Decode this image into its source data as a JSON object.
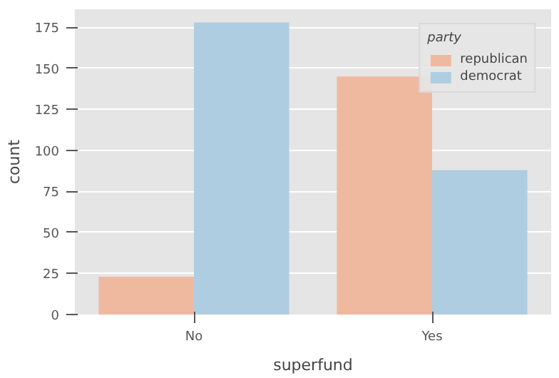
{
  "chart_data": {
    "type": "bar",
    "xlabel": "superfund",
    "ylabel": "count",
    "legend_title": "party",
    "categories": [
      "No",
      "Yes"
    ],
    "series": [
      {
        "name": "republican",
        "color": "#efb9a0",
        "values": [
          23,
          145
        ]
      },
      {
        "name": "democrat",
        "color": "#aecde1",
        "values": [
          178,
          88
        ]
      }
    ],
    "ylim": [
      0,
      186
    ],
    "yticks": [
      0,
      25,
      50,
      75,
      100,
      125,
      150,
      175
    ],
    "grid": "y",
    "legend": "top right"
  }
}
